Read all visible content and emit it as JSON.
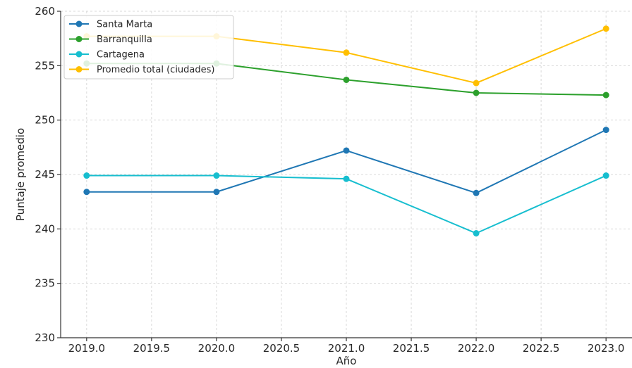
{
  "chart_data": {
    "type": "line",
    "title": "",
    "xlabel": "Año",
    "ylabel": "Puntaje promedio",
    "x": [
      2019.0,
      2020.0,
      2021.0,
      2022.0,
      2023.0
    ],
    "xlim": [
      2018.8,
      2023.2
    ],
    "ylim": [
      230,
      260
    ],
    "x_ticks": [
      "2019.0",
      "2019.5",
      "2020.0",
      "2020.5",
      "2021.0",
      "2021.5",
      "2022.0",
      "2022.5",
      "2023.0"
    ],
    "x_tick_values": [
      2019.0,
      2019.5,
      2020.0,
      2020.5,
      2021.0,
      2021.5,
      2022.0,
      2022.5,
      2023.0
    ],
    "y_ticks": [
      "230",
      "235",
      "240",
      "245",
      "250",
      "255",
      "260"
    ],
    "y_tick_values": [
      230,
      235,
      240,
      245,
      250,
      255,
      260
    ],
    "grid": true,
    "legend_position": "top-left",
    "series": [
      {
        "name": "Santa Marta",
        "color": "#1f77b4",
        "values": [
          243.4,
          243.4,
          247.2,
          243.3,
          249.1
        ]
      },
      {
        "name": "Barranquilla",
        "color": "#2ca02c",
        "values": [
          255.2,
          255.2,
          253.7,
          252.5,
          252.3
        ]
      },
      {
        "name": "Cartagena",
        "color": "#17becf",
        "values": [
          244.9,
          244.9,
          244.6,
          239.6,
          244.9
        ]
      },
      {
        "name": "Promedio total (ciudades)",
        "color": "#ffbf00",
        "values": [
          257.7,
          257.7,
          256.2,
          253.4,
          258.4
        ]
      }
    ]
  }
}
